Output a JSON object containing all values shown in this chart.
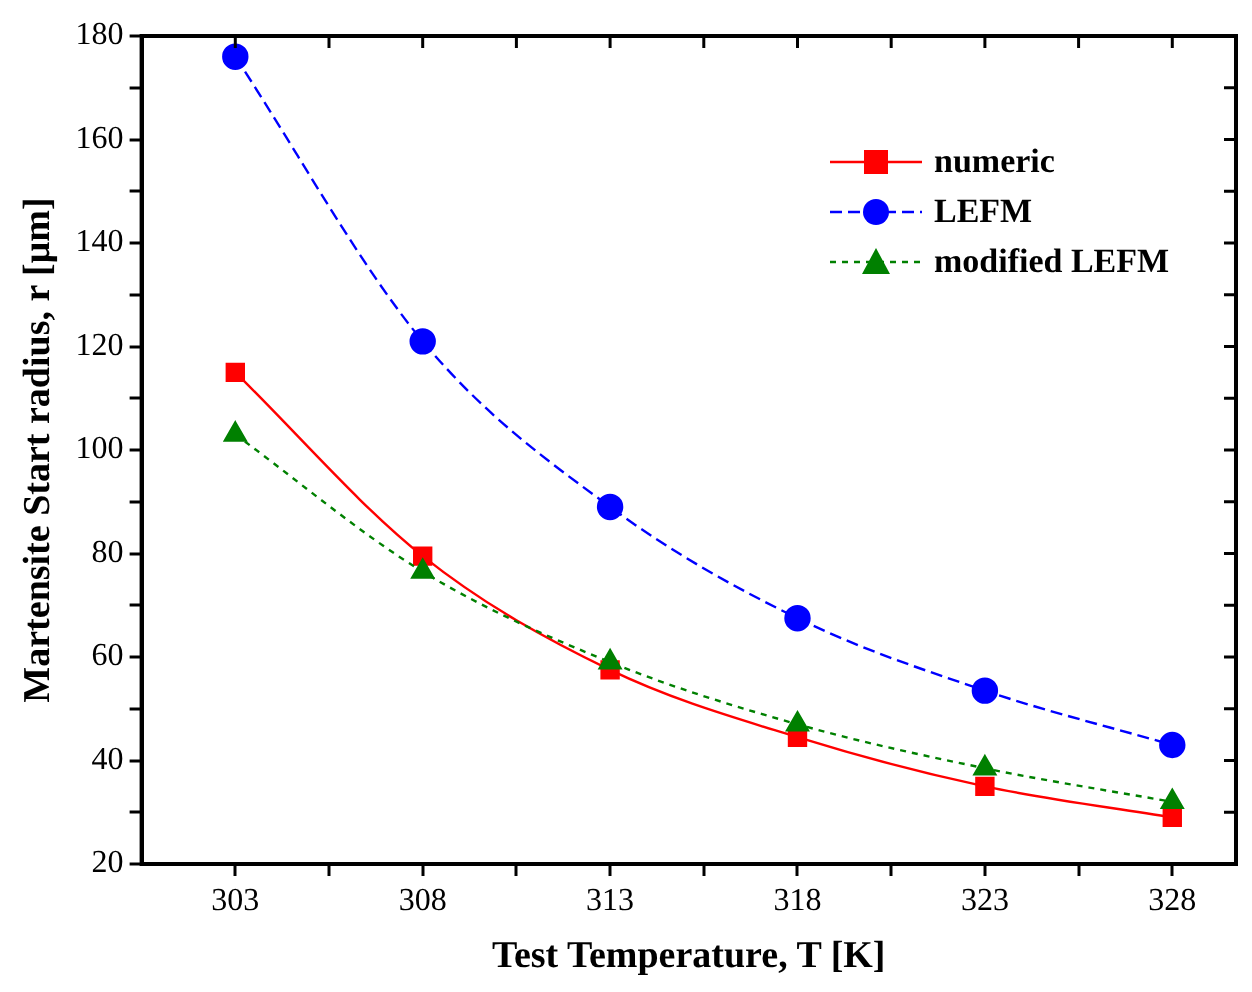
{
  "chart_data": {
    "type": "line",
    "xlabel": "Test Temperature, T [K]",
    "ylabel": "Martensite Start radius, r [μm]",
    "x": [
      303,
      308,
      313,
      318,
      323,
      328
    ],
    "xlim": [
      300.5,
      329.7
    ],
    "xticks": [
      303,
      {
        "value": 305.5,
        "label": null
      },
      308,
      {
        "value": 310.5,
        "label": null
      },
      313,
      {
        "value": 315.5,
        "label": null
      },
      318,
      {
        "value": 320.5,
        "label": null
      },
      323,
      {
        "value": 325.5,
        "label": null
      },
      328
    ],
    "ylim": [
      20,
      180
    ],
    "yticks": [
      20,
      {
        "value": 30,
        "label": null
      },
      40,
      {
        "value": 50,
        "label": null
      },
      60,
      {
        "value": 70,
        "label": null
      },
      80,
      {
        "value": 90,
        "label": null
      },
      100,
      {
        "value": 110,
        "label": null
      },
      120,
      {
        "value": 130,
        "label": null
      },
      140,
      {
        "value": 150,
        "label": null
      },
      160,
      {
        "value": 170,
        "label": null
      },
      180
    ],
    "grid": false,
    "legend": "top right",
    "series": [
      {
        "name": "numeric",
        "color": "#ff0000",
        "marker": "square",
        "line_style": "solid",
        "values": [
          115,
          79.5,
          57.5,
          44.5,
          35,
          29
        ]
      },
      {
        "name": "LEFM",
        "color": "#0000ff",
        "marker": "circle",
        "line_style": "dashed",
        "values": [
          176,
          121,
          89,
          67.5,
          53.5,
          43
        ]
      },
      {
        "name": "modified LEFM",
        "color": "#008000",
        "marker": "triangle",
        "line_style": "dotted",
        "values": [
          103,
          76.5,
          59,
          47,
          38.5,
          32
        ]
      }
    ]
  }
}
